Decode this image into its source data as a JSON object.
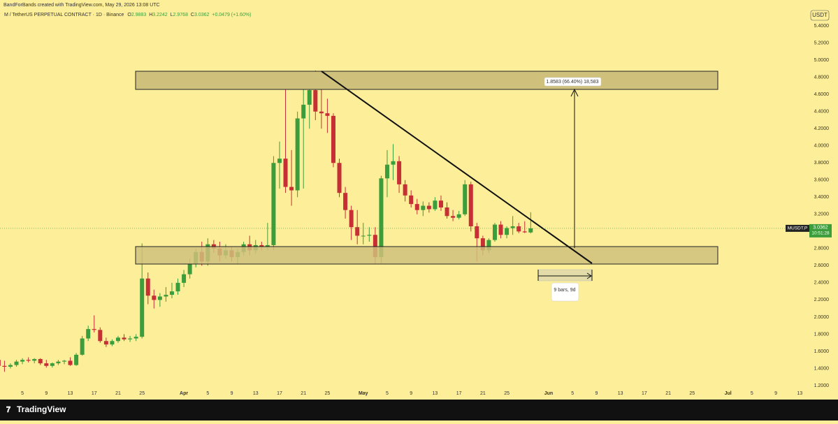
{
  "header": "BandForBands created with TradingView.com, May 29, 2026 13:08 UTC",
  "footer": {
    "brand": "TradingView"
  },
  "chart_data": {
    "type": "candlestick",
    "title": "M / TetherUS PERPETUAL CONTRACT · 1D · Binance",
    "ohlc_labels": [
      "O",
      "H",
      "L",
      "C"
    ],
    "change": "+0.0479 (+1.60%)",
    "currency": "USDT",
    "symbol_label": "MUSDT.P",
    "countdown": "10:51:28",
    "annotations": [
      "1.8583 (66.40%) 18,583",
      "9 bars, 9d"
    ],
    "up_color": "#3b9d3b",
    "down_color": "#c62f34",
    "x": [
      0,
      1,
      2,
      3,
      4,
      5,
      6,
      7,
      8,
      9,
      10,
      11,
      12,
      13,
      14,
      15,
      16,
      17,
      18,
      19,
      20,
      21,
      22,
      23,
      24,
      25,
      26,
      27,
      28,
      29,
      30,
      31,
      32,
      33,
      34,
      35,
      36,
      37,
      38,
      39,
      40,
      41,
      42,
      43,
      44,
      45,
      46,
      47,
      48,
      49,
      50,
      51,
      52,
      53,
      54,
      55,
      56,
      57,
      58,
      59,
      60,
      61,
      62,
      63,
      64,
      65,
      66,
      67,
      68,
      69,
      70,
      71,
      72,
      73,
      74,
      75,
      76,
      77,
      78,
      79,
      80,
      81,
      82,
      83,
      84,
      85,
      86,
      87,
      88,
      89
    ],
    "open": [
      1.5,
      1.43,
      1.42,
      1.44,
      1.48,
      1.5,
      1.49,
      1.51,
      1.46,
      1.43,
      1.46,
      1.48,
      1.49,
      1.44,
      1.56,
      1.75,
      1.86,
      1.85,
      1.72,
      1.68,
      1.72,
      1.76,
      1.74,
      1.75,
      1.77,
      2.45,
      2.25,
      2.2,
      2.24,
      2.26,
      2.3,
      2.4,
      2.5,
      2.62,
      2.76,
      2.65,
      2.85,
      2.8,
      2.72,
      2.78,
      2.7,
      2.76,
      2.85,
      2.78,
      2.84,
      2.82,
      2.84,
      3.8,
      3.85,
      3.52,
      3.48,
      4.32,
      4.48,
      4.65,
      4.4,
      4.38,
      4.35,
      3.8,
      3.45,
      3.25,
      3.05,
      2.95,
      2.95,
      2.96,
      2.7,
      3.62,
      3.78,
      3.82,
      3.55,
      3.42,
      3.32,
      3.25,
      3.3,
      3.26,
      3.36,
      3.28,
      3.18,
      3.16,
      3.2,
      3.55,
      3.06,
      2.92,
      2.78,
      2.9,
      3.08,
      2.96,
      3.04,
      3.06,
      3.0,
      2.9883
    ],
    "high": [
      1.52,
      1.49,
      1.46,
      1.5,
      1.52,
      1.53,
      1.52,
      1.52,
      1.5,
      1.47,
      1.5,
      1.5,
      1.53,
      1.58,
      1.78,
      1.9,
      2.02,
      1.88,
      1.76,
      1.74,
      1.78,
      1.8,
      1.78,
      1.8,
      2.86,
      2.52,
      2.32,
      2.28,
      2.35,
      2.4,
      2.45,
      2.55,
      2.68,
      2.8,
      2.88,
      2.92,
      2.9,
      2.88,
      2.85,
      2.82,
      2.8,
      2.88,
      2.95,
      2.9,
      2.88,
      3.1,
      3.88,
      4.05,
      4.78,
      3.95,
      4.4,
      4.7,
      4.7,
      4.88,
      4.72,
      4.55,
      4.38,
      3.85,
      3.52,
      3.3,
      3.25,
      3.1,
      3.05,
      3.05,
      3.65,
      3.95,
      4.02,
      3.88,
      3.6,
      3.48,
      3.38,
      3.35,
      3.34,
      3.4,
      3.42,
      3.34,
      3.25,
      3.24,
      3.6,
      3.58,
      3.1,
      2.95,
      2.92,
      3.1,
      3.12,
      3.06,
      3.18,
      3.1,
      3.12,
      3.2242
    ],
    "low": [
      1.38,
      1.36,
      1.4,
      1.42,
      1.45,
      1.47,
      1.46,
      1.44,
      1.41,
      1.41,
      1.44,
      1.45,
      1.43,
      1.43,
      1.55,
      1.72,
      1.82,
      1.7,
      1.65,
      1.66,
      1.7,
      1.72,
      1.71,
      1.72,
      1.75,
      2.15,
      2.1,
      2.12,
      2.18,
      2.22,
      2.26,
      2.35,
      2.45,
      2.58,
      2.6,
      2.6,
      2.75,
      2.65,
      2.68,
      2.65,
      2.62,
      2.72,
      2.72,
      2.74,
      2.78,
      2.78,
      2.78,
      3.5,
      3.45,
      3.3,
      3.4,
      3.5,
      4.2,
      4.3,
      4.2,
      4.15,
      3.75,
      3.4,
      3.15,
      2.9,
      2.85,
      2.85,
      2.88,
      2.62,
      2.62,
      3.4,
      3.6,
      3.45,
      3.35,
      3.28,
      3.2,
      3.18,
      3.22,
      3.24,
      3.24,
      3.15,
      3.12,
      3.14,
      3.18,
      3.0,
      2.65,
      2.72,
      2.75,
      2.88,
      2.92,
      2.92,
      2.96,
      2.98,
      2.98,
      2.9768
    ],
    "close": [
      1.43,
      1.42,
      1.44,
      1.48,
      1.5,
      1.49,
      1.51,
      1.46,
      1.43,
      1.46,
      1.48,
      1.49,
      1.44,
      1.56,
      1.75,
      1.86,
      1.85,
      1.72,
      1.68,
      1.72,
      1.76,
      1.74,
      1.75,
      1.77,
      2.45,
      2.25,
      2.2,
      2.24,
      2.26,
      2.3,
      2.4,
      2.5,
      2.62,
      2.76,
      2.65,
      2.85,
      2.8,
      2.72,
      2.78,
      2.7,
      2.76,
      2.85,
      2.78,
      2.84,
      2.82,
      2.84,
      3.8,
      3.85,
      3.52,
      3.48,
      4.32,
      4.48,
      4.65,
      4.4,
      4.38,
      4.35,
      3.8,
      3.45,
      3.25,
      3.05,
      2.95,
      2.95,
      2.96,
      2.7,
      3.62,
      3.78,
      3.82,
      3.55,
      3.42,
      3.32,
      3.25,
      3.3,
      3.26,
      3.36,
      3.28,
      3.18,
      3.16,
      3.2,
      3.55,
      3.06,
      2.92,
      2.78,
      2.9,
      3.08,
      2.96,
      3.04,
      3.06,
      3.0,
      2.99,
      3.0362
    ],
    "xlim": [
      0.25,
      135.6
    ],
    "xticks": [
      {
        "value": 4,
        "label": "5"
      },
      {
        "value": 8,
        "label": "9"
      },
      {
        "value": 12,
        "label": "13"
      },
      {
        "value": 16,
        "label": "17"
      },
      {
        "value": 20,
        "label": "21"
      },
      {
        "value": 24,
        "label": "25"
      },
      {
        "value": 31,
        "label": "Apr"
      },
      {
        "value": 35,
        "label": "5"
      },
      {
        "value": 39,
        "label": "9"
      },
      {
        "value": 43,
        "label": "13"
      },
      {
        "value": 47,
        "label": "17"
      },
      {
        "value": 51,
        "label": "21"
      },
      {
        "value": 55,
        "label": "25"
      },
      {
        "value": 61,
        "label": "May"
      },
      {
        "value": 65,
        "label": "5"
      },
      {
        "value": 69,
        "label": "9"
      },
      {
        "value": 73,
        "label": "13"
      },
      {
        "value": 77,
        "label": "17"
      },
      {
        "value": 81,
        "label": "21"
      },
      {
        "value": 85,
        "label": "25"
      },
      {
        "value": 92,
        "label": "Jun"
      },
      {
        "value": 96,
        "label": "5"
      },
      {
        "value": 100,
        "label": "9"
      },
      {
        "value": 104,
        "label": "13"
      },
      {
        "value": 108,
        "label": "17"
      },
      {
        "value": 112,
        "label": "21"
      },
      {
        "value": 116,
        "label": "25"
      },
      {
        "value": 122,
        "label": "Jul"
      },
      {
        "value": 126,
        "label": "5"
      },
      {
        "value": 130,
        "label": "9"
      },
      {
        "value": 134,
        "label": "13"
      }
    ],
    "ylim": [
      1.053,
      5.605
    ],
    "yticks": [
      {
        "value": 1.2,
        "label": "1.2000"
      },
      {
        "value": 1.4,
        "label": "1.4000"
      },
      {
        "value": 1.6,
        "label": "1.6000"
      },
      {
        "value": 1.8,
        "label": "1.8000"
      },
      {
        "value": 2.0,
        "label": "2.0000"
      },
      {
        "value": 2.2,
        "label": "2.2000"
      },
      {
        "value": 2.4,
        "label": "2.4000"
      },
      {
        "value": 2.6,
        "label": "2.6000"
      },
      {
        "value": 2.8,
        "label": "2.8000"
      },
      {
        "value": 3.0,
        "label": "3.0000"
      },
      {
        "value": 3.2,
        "label": "3.2000"
      },
      {
        "value": 3.4,
        "label": "3.4000"
      },
      {
        "value": 3.6,
        "label": "3.6000"
      },
      {
        "value": 3.8,
        "label": "3.8000"
      },
      {
        "value": 4.0,
        "label": "4.0000"
      },
      {
        "value": 4.2,
        "label": "4.2000"
      },
      {
        "value": 4.4,
        "label": "4.4000"
      },
      {
        "value": 4.6,
        "label": "4.6000"
      },
      {
        "value": 4.8,
        "label": "4.8000"
      },
      {
        "value": 5.0,
        "label": "5.0000"
      },
      {
        "value": 5.2,
        "label": "5.2000"
      },
      {
        "value": 5.4,
        "label": "5.4000"
      }
    ]
  }
}
